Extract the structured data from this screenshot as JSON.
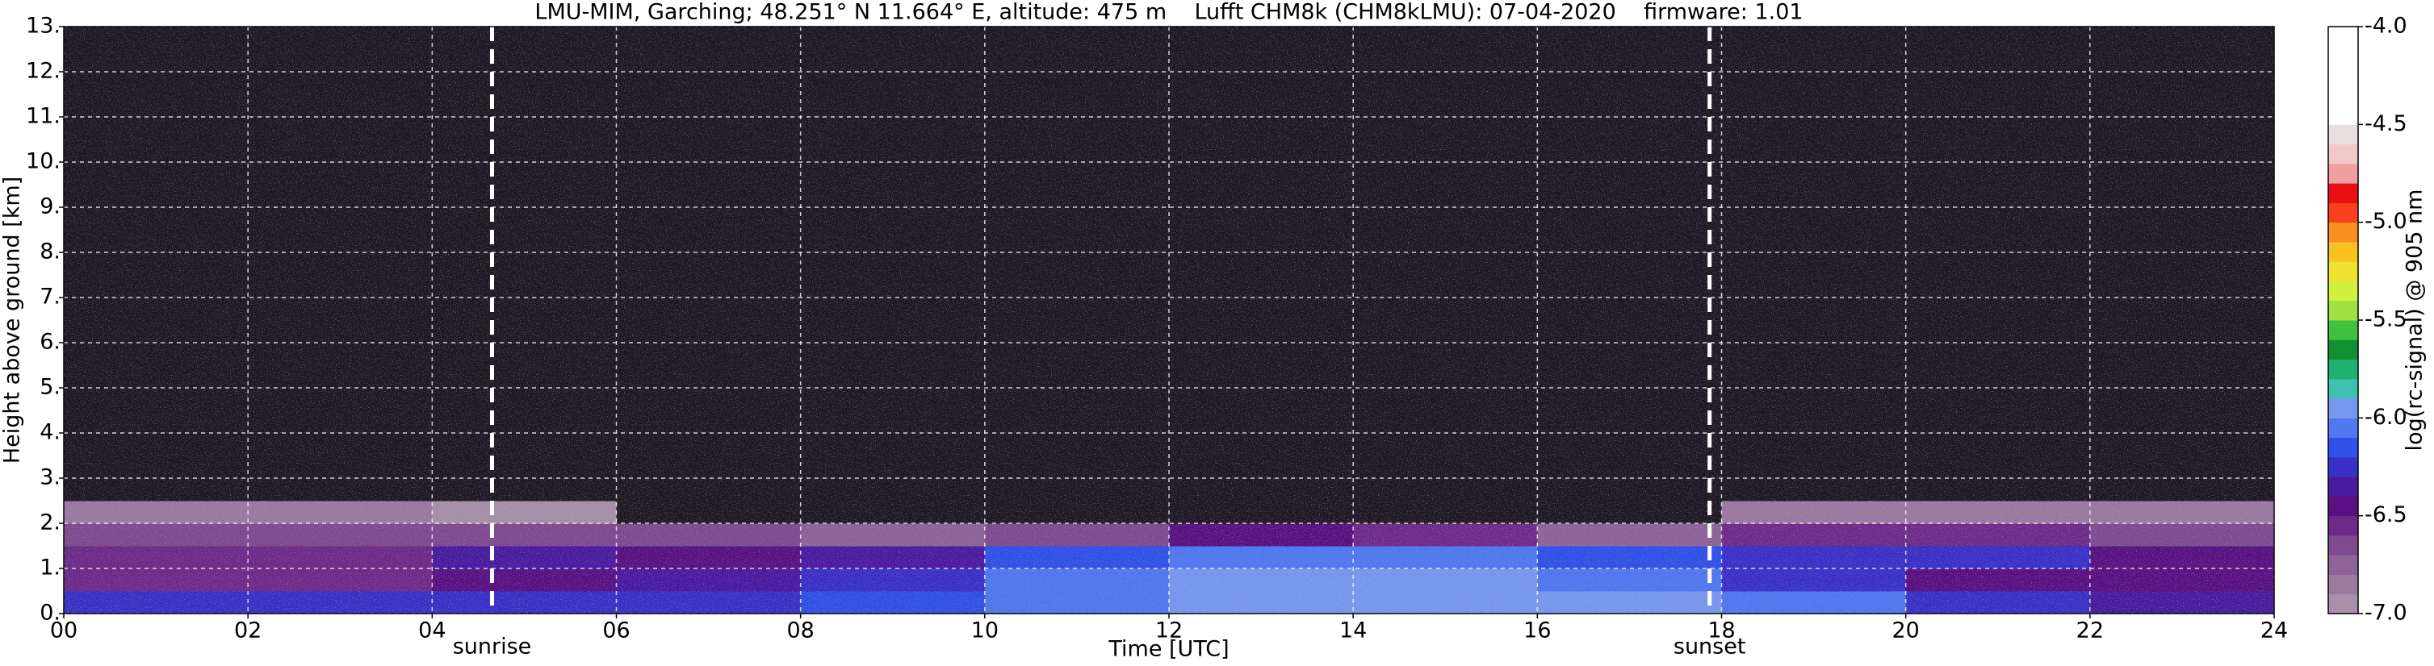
{
  "chart_data": {
    "type": "heatmap",
    "title": "LMU-MIM, Garching; 48.251° N 11.664° E, altitude: 475 m    Lufft CHM8k (CHM8kLMU): 07-04-2020    firmware: 1.01",
    "xlabel": "Time [UTC]",
    "ylabel": "Height above ground [km]",
    "colorbar_label": "log(rc-signal) @ 905 nm",
    "xlim": [
      0,
      24
    ],
    "xticks": [
      {
        "value": 0,
        "label": "00"
      },
      {
        "value": 2,
        "label": "02"
      },
      {
        "value": 4,
        "label": "04"
      },
      {
        "value": 6,
        "label": "06"
      },
      {
        "value": 8,
        "label": "08"
      },
      {
        "value": 10,
        "label": "10"
      },
      {
        "value": 12,
        "label": "12"
      },
      {
        "value": 14,
        "label": "14"
      },
      {
        "value": 16,
        "label": "16"
      },
      {
        "value": 18,
        "label": "18"
      },
      {
        "value": 20,
        "label": "20"
      },
      {
        "value": 22,
        "label": "22"
      },
      {
        "value": 24,
        "label": "24"
      }
    ],
    "ylim": [
      0,
      13
    ],
    "yticks": [
      {
        "value": 0,
        "label": "0."
      },
      {
        "value": 1,
        "label": "1."
      },
      {
        "value": 2,
        "label": "2."
      },
      {
        "value": 3,
        "label": "3."
      },
      {
        "value": 4,
        "label": "4."
      },
      {
        "value": 5,
        "label": "5."
      },
      {
        "value": 6,
        "label": "6."
      },
      {
        "value": 7,
        "label": "7."
      },
      {
        "value": 8,
        "label": "8."
      },
      {
        "value": 9,
        "label": "9."
      },
      {
        "value": 10,
        "label": "10."
      },
      {
        "value": 11,
        "label": "11."
      },
      {
        "value": 12,
        "label": "12."
      },
      {
        "value": 13,
        "label": "13."
      }
    ],
    "grid": true,
    "x_edges": [
      0,
      2,
      4,
      6,
      8,
      10,
      12,
      14,
      16,
      18,
      20,
      22,
      24
    ],
    "y_edges": [
      0,
      0.5,
      1,
      1.5,
      2,
      2.5,
      3,
      4,
      5,
      6,
      7,
      8,
      9,
      10,
      11,
      12,
      13
    ],
    "z": [
      [
        -6.3,
        -6.3,
        -6.3,
        -6.3,
        -6.2,
        -6.1,
        -6.0,
        -6.0,
        -6.0,
        -6.1,
        -6.3,
        -6.4
      ],
      [
        -6.6,
        -6.6,
        -6.5,
        -6.4,
        -6.3,
        -6.1,
        -6.0,
        -6.0,
        -6.1,
        -6.3,
        -6.5,
        -6.5
      ],
      [
        -6.6,
        -6.6,
        -6.4,
        -6.5,
        -6.4,
        -6.2,
        -6.1,
        -6.1,
        -6.2,
        -6.3,
        -6.3,
        -6.5
      ],
      [
        -6.7,
        -6.7,
        -6.7,
        -6.7,
        -6.8,
        -6.7,
        -6.5,
        -6.6,
        -6.8,
        -6.6,
        -6.6,
        -6.7
      ],
      [
        -6.9,
        -6.9,
        -7.0,
        -7.1,
        -7.1,
        -7.1,
        -7.1,
        -7.1,
        -7.1,
        -6.9,
        -6.9,
        -6.9
      ],
      [
        -7.2,
        -7.2,
        -7.2,
        -7.2,
        -7.2,
        -7.2,
        -7.2,
        -7.2,
        -7.2,
        -7.2,
        -7.2,
        -7.2
      ],
      [
        -7.2,
        -7.2,
        -7.2,
        -7.2,
        -7.2,
        -7.2,
        -7.2,
        -7.2,
        -7.2,
        -7.2,
        -7.2,
        -7.2
      ],
      [
        -7.2,
        -7.2,
        -7.2,
        -7.2,
        -7.2,
        -7.2,
        -7.2,
        -7.2,
        -7.2,
        -7.2,
        -7.2,
        -7.2
      ],
      [
        -7.2,
        -7.2,
        -7.2,
        -7.2,
        -7.2,
        -7.2,
        -7.2,
        -7.2,
        -7.2,
        -7.2,
        -7.2,
        -7.2
      ],
      [
        -7.2,
        -7.2,
        -7.2,
        -7.2,
        -7.2,
        -7.2,
        -7.2,
        -7.2,
        -7.2,
        -7.2,
        -7.2,
        -7.2
      ],
      [
        -7.2,
        -7.2,
        -7.2,
        -7.2,
        -7.2,
        -7.2,
        -7.2,
        -7.2,
        -7.2,
        -7.2,
        -7.2,
        -7.2
      ],
      [
        -7.2,
        -7.2,
        -7.2,
        -7.2,
        -7.2,
        -7.2,
        -7.2,
        -7.2,
        -7.2,
        -7.2,
        -7.2,
        -7.2
      ],
      [
        -7.2,
        -7.2,
        -7.2,
        -7.2,
        -7.2,
        -7.2,
        -7.2,
        -7.2,
        -7.2,
        -7.2,
        -7.2,
        -7.2
      ],
      [
        -7.2,
        -7.2,
        -7.2,
        -7.2,
        -7.2,
        -7.2,
        -7.2,
        -7.2,
        -7.2,
        -7.2,
        -7.2,
        -7.2
      ],
      [
        -7.2,
        -7.2,
        -7.2,
        -7.2,
        -7.2,
        -7.2,
        -7.2,
        -7.2,
        -7.2,
        -7.2,
        -7.2,
        -7.2
      ],
      [
        -7.2,
        -7.2,
        -7.2,
        -7.2,
        -7.2,
        -7.2,
        -7.2,
        -7.2,
        -7.2,
        -7.2,
        -7.2,
        -7.2
      ]
    ],
    "zlim": [
      -7,
      -4
    ],
    "zticks": [
      {
        "value": -4,
        "label": "-4.0"
      },
      {
        "value": -4.5,
        "label": "-4.5"
      },
      {
        "value": -5,
        "label": "-5.0"
      },
      {
        "value": -5.5,
        "label": "-5.5"
      },
      {
        "value": -6,
        "label": "-6.0"
      },
      {
        "value": -6.5,
        "label": "-6.5"
      },
      {
        "value": -7,
        "label": "-7.0"
      }
    ],
    "colorscale": [
      "#a890a8",
      "#9c7aa0",
      "#8e6498",
      "#7f4a90",
      "#6e2a88",
      "#5a1080",
      "#4a1aa0",
      "#3a30c8",
      "#3050e8",
      "#5078f0",
      "#7898f0",
      "#40c0b0",
      "#20b070",
      "#109030",
      "#40c040",
      "#a0e040",
      "#d0f040",
      "#f0e030",
      "#f8c020",
      "#f89020",
      "#f84020",
      "#e81010",
      "#f0a0a0",
      "#f0c8c8",
      "#e8e0e0",
      "#ffffff",
      "#ffffff",
      "#ffffff",
      "#ffffff",
      "#ffffff"
    ],
    "under_color": "#1e1822",
    "annotations": [
      {
        "x": 4.65,
        "text": "sunrise"
      },
      {
        "x": 17.87,
        "text": "sunset"
      }
    ]
  }
}
